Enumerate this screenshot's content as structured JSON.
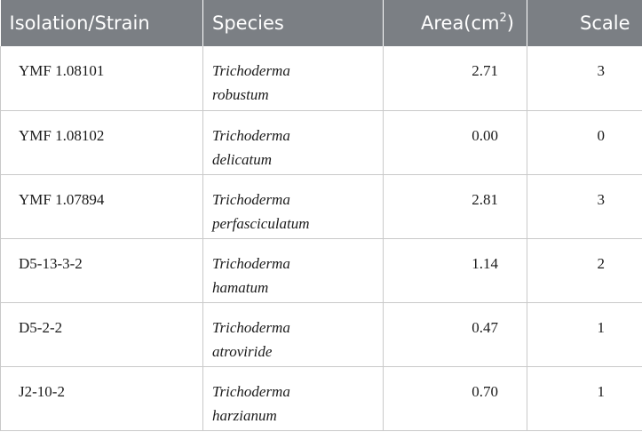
{
  "headers": {
    "strain": "Isolation/Strain",
    "species": "Species",
    "area_base": "Area(cm",
    "area_sup": "2",
    "area_close": ")",
    "scale": "Scale"
  },
  "rows": [
    {
      "strain": "YMF 1.08101",
      "genus": "Trichoderma",
      "epithet": "robustum",
      "area": "2.71",
      "scale": "3"
    },
    {
      "strain": "YMF 1.08102",
      "genus": "Trichoderma",
      "epithet": "delicatum",
      "area": "0.00",
      "scale": "0"
    },
    {
      "strain": "YMF 1.07894",
      "genus": "Trichoderma",
      "epithet": "perfasciculatum",
      "area": "2.81",
      "scale": "3"
    },
    {
      "strain": "D5-13-3-2",
      "genus": "Trichoderma",
      "epithet": "hamatum",
      "area": "1.14",
      "scale": "2"
    },
    {
      "strain": "D5-2-2",
      "genus": "Trichoderma",
      "epithet": "atroviride",
      "area": "0.47",
      "scale": "1"
    },
    {
      "strain": "J2-10-2",
      "genus": "Trichoderma",
      "epithet": "harzianum",
      "area": "0.70",
      "scale": "1"
    }
  ]
}
